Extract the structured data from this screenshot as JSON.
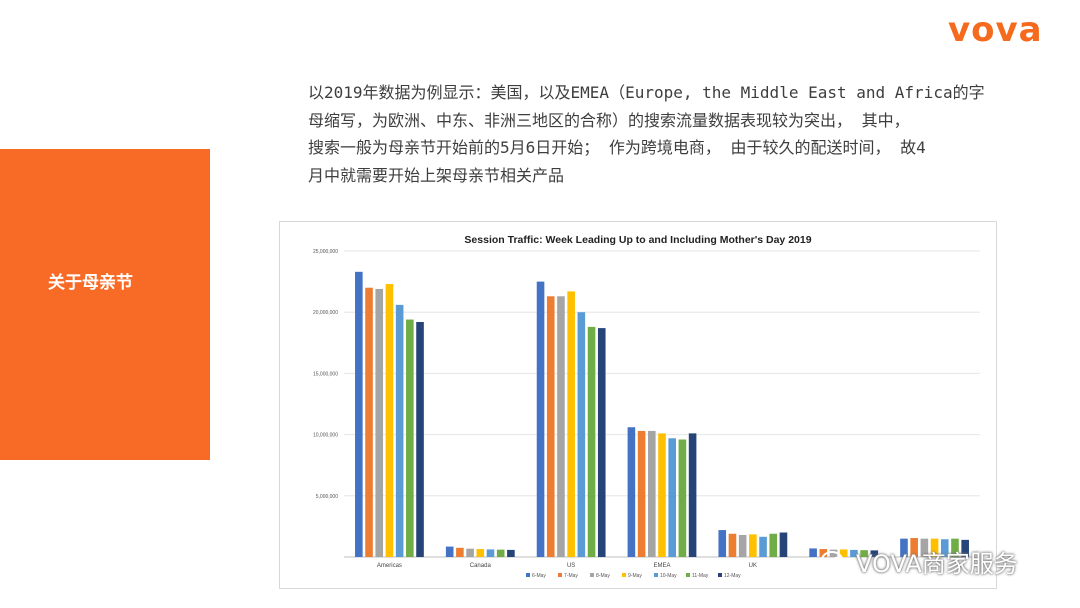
{
  "brand": {
    "logo": "vova"
  },
  "sidebar": {
    "title": "关于母亲节"
  },
  "description": {
    "lines": [
      "以2019年数据为例显示：美国，以及EMEA（Europe, the Middle East and Africa的字",
      "母缩写，为欧洲、中东、非洲三地区的合称）的搜索流量数据表现较为突出，  其中，",
      "搜索一般为母亲节开始前的5月6日开始；  作为跨境电商，  由于较久的配送时间，  故4",
      "月中就需要开始上架母亲节相关产品"
    ]
  },
  "watermark": {
    "text": "VOVA商家服务"
  },
  "chart_data": {
    "type": "bar",
    "title": "Session Traffic: Week Leading Up to and Including Mother's Day 2019",
    "xlabel": "",
    "ylabel": "",
    "ylim": [
      0,
      25000000
    ],
    "yticks": [
      0,
      5000000,
      10000000,
      15000000,
      20000000,
      25000000
    ],
    "ytick_labels": [
      "",
      "5,000,000",
      "10,000,000",
      "15,000,000",
      "20,000,000",
      "25,000,000"
    ],
    "grid": true,
    "legend_position": "bottom",
    "categories": [
      "Americas",
      "Canada",
      "US",
      "EMEA",
      "UK",
      "",
      ""
    ],
    "series": [
      {
        "name": "6-May",
        "color": "#4472c4",
        "values": [
          23300000,
          850000,
          22500000,
          10600000,
          2200000,
          700000,
          1500000
        ]
      },
      {
        "name": "7-May",
        "color": "#ed7d31",
        "values": [
          22000000,
          750000,
          21300000,
          10300000,
          1900000,
          650000,
          1550000
        ]
      },
      {
        "name": "8-May",
        "color": "#a5a5a5",
        "values": [
          21900000,
          680000,
          21300000,
          10300000,
          1800000,
          600000,
          1500000
        ]
      },
      {
        "name": "9-May",
        "color": "#ffc000",
        "values": [
          22300000,
          650000,
          21700000,
          10100000,
          1850000,
          620000,
          1500000
        ]
      },
      {
        "name": "10-May",
        "color": "#5b9bd5",
        "values": [
          20600000,
          620000,
          20000000,
          9700000,
          1650000,
          580000,
          1450000
        ]
      },
      {
        "name": "11-May",
        "color": "#70ad47",
        "values": [
          19400000,
          600000,
          18800000,
          9600000,
          1900000,
          560000,
          1500000
        ]
      },
      {
        "name": "12-May",
        "color": "#264478",
        "values": [
          19200000,
          580000,
          18700000,
          10100000,
          2000000,
          540000,
          1400000
        ]
      }
    ]
  }
}
